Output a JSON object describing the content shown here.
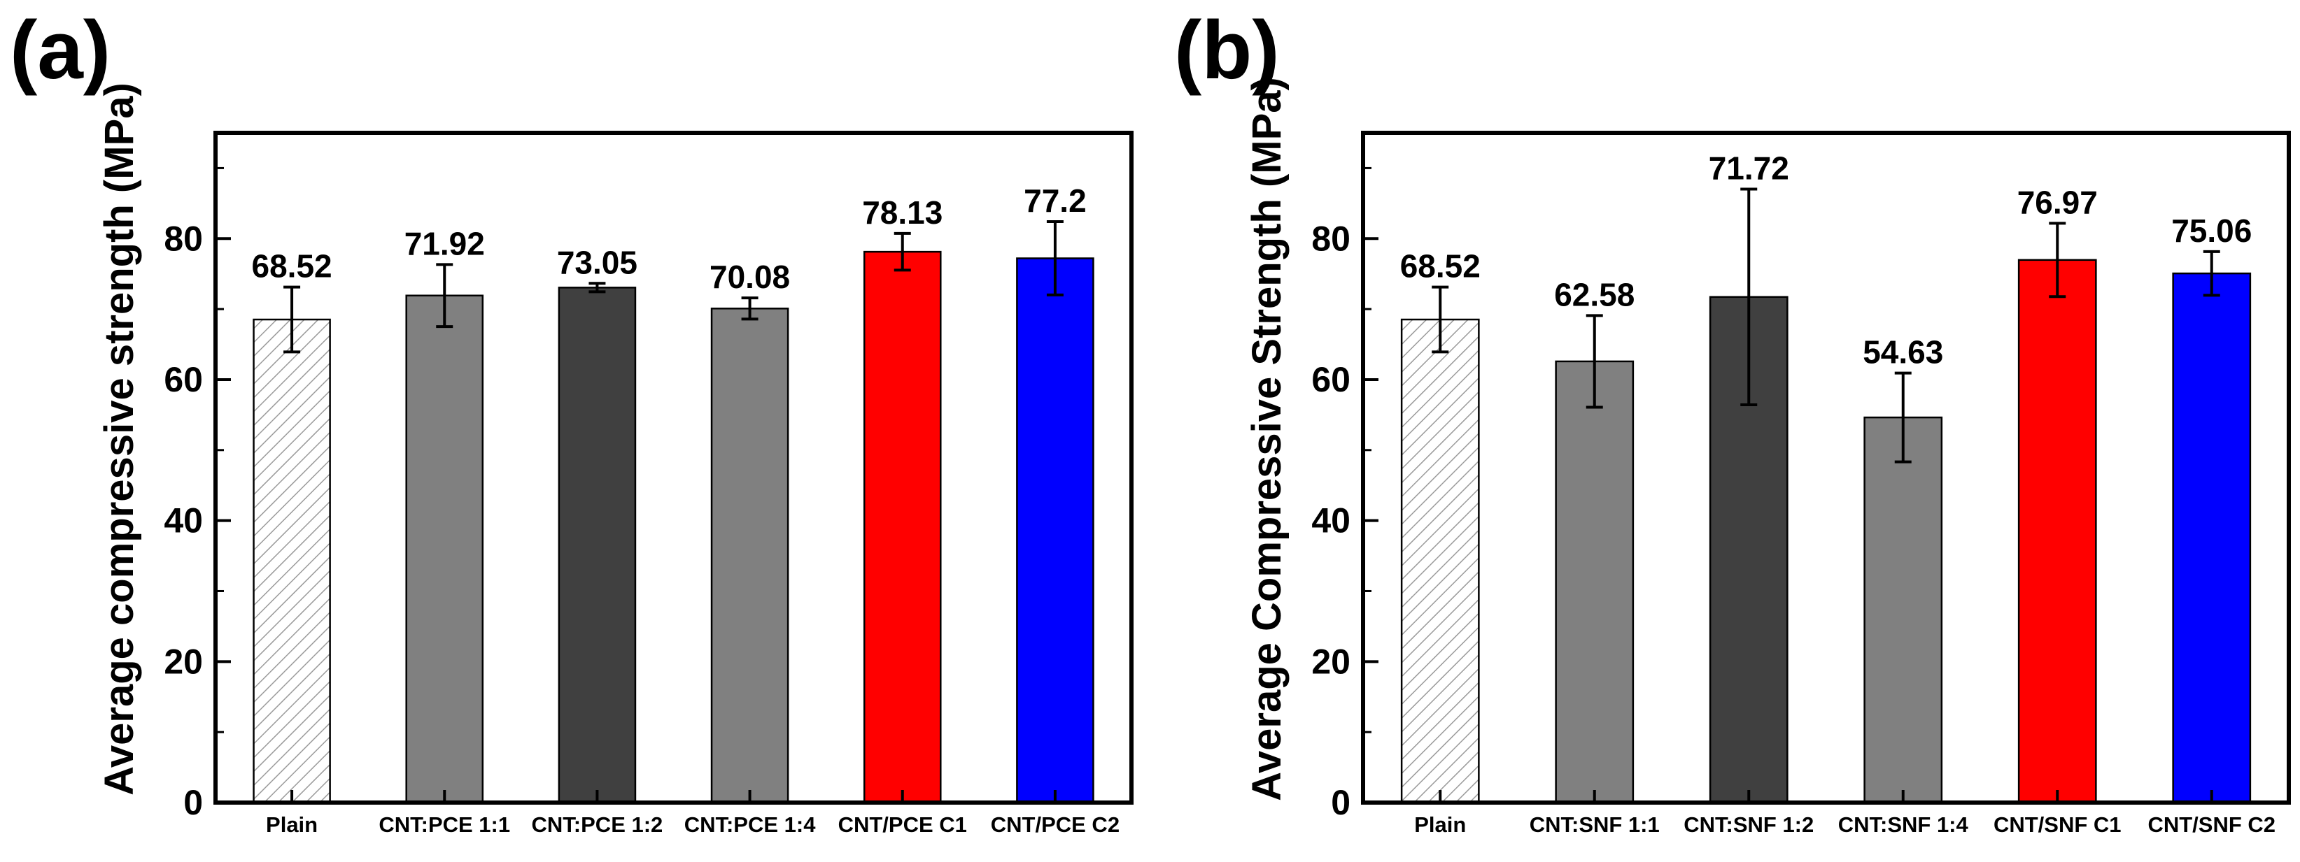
{
  "chart_data": [
    {
      "type": "bar",
      "panel_label": "(a)",
      "ylabel": "Average compressive strength (MPa)",
      "ylim": [
        0,
        95
      ],
      "yticks": [
        0,
        20,
        40,
        60,
        80
      ],
      "categories": [
        "Plain",
        "CNT:PCE 1:1",
        "CNT:PCE 1:2",
        "CNT:PCE 1:4",
        "CNT/PCE C1",
        "CNT/PCE C2"
      ],
      "values": [
        68.52,
        71.92,
        73.05,
        70.08,
        78.13,
        77.2
      ],
      "value_labels": [
        "68.52",
        "71.92",
        "73.05",
        "70.08",
        "78.13",
        "77.2"
      ],
      "errors": [
        4.6,
        4.4,
        0.6,
        1.5,
        2.6,
        5.2
      ],
      "bar_fills": [
        "hatch",
        "#808080",
        "#404040",
        "#808080",
        "#ff0000",
        "#0000ff"
      ],
      "grid": false
    },
    {
      "type": "bar",
      "panel_label": "(b)",
      "ylabel": "Average Compressive Strength (MPa)",
      "ylim": [
        0,
        95
      ],
      "yticks": [
        0,
        20,
        40,
        60,
        80
      ],
      "categories": [
        "Plain",
        "CNT:SNF 1:1",
        "CNT:SNF 1:2",
        "CNT:SNF 1:4",
        "CNT/SNF C1",
        "CNT/SNF C2"
      ],
      "values": [
        68.52,
        62.58,
        71.72,
        54.63,
        76.97,
        75.06
      ],
      "value_labels": [
        "68.52",
        "62.58",
        "71.72",
        "54.63",
        "76.97",
        "75.06"
      ],
      "errors": [
        4.6,
        6.5,
        15.3,
        6.3,
        5.2,
        3.1
      ],
      "bar_fills": [
        "hatch",
        "#808080",
        "#404040",
        "#808080",
        "#ff0000",
        "#0000ff"
      ],
      "grid": false
    }
  ]
}
